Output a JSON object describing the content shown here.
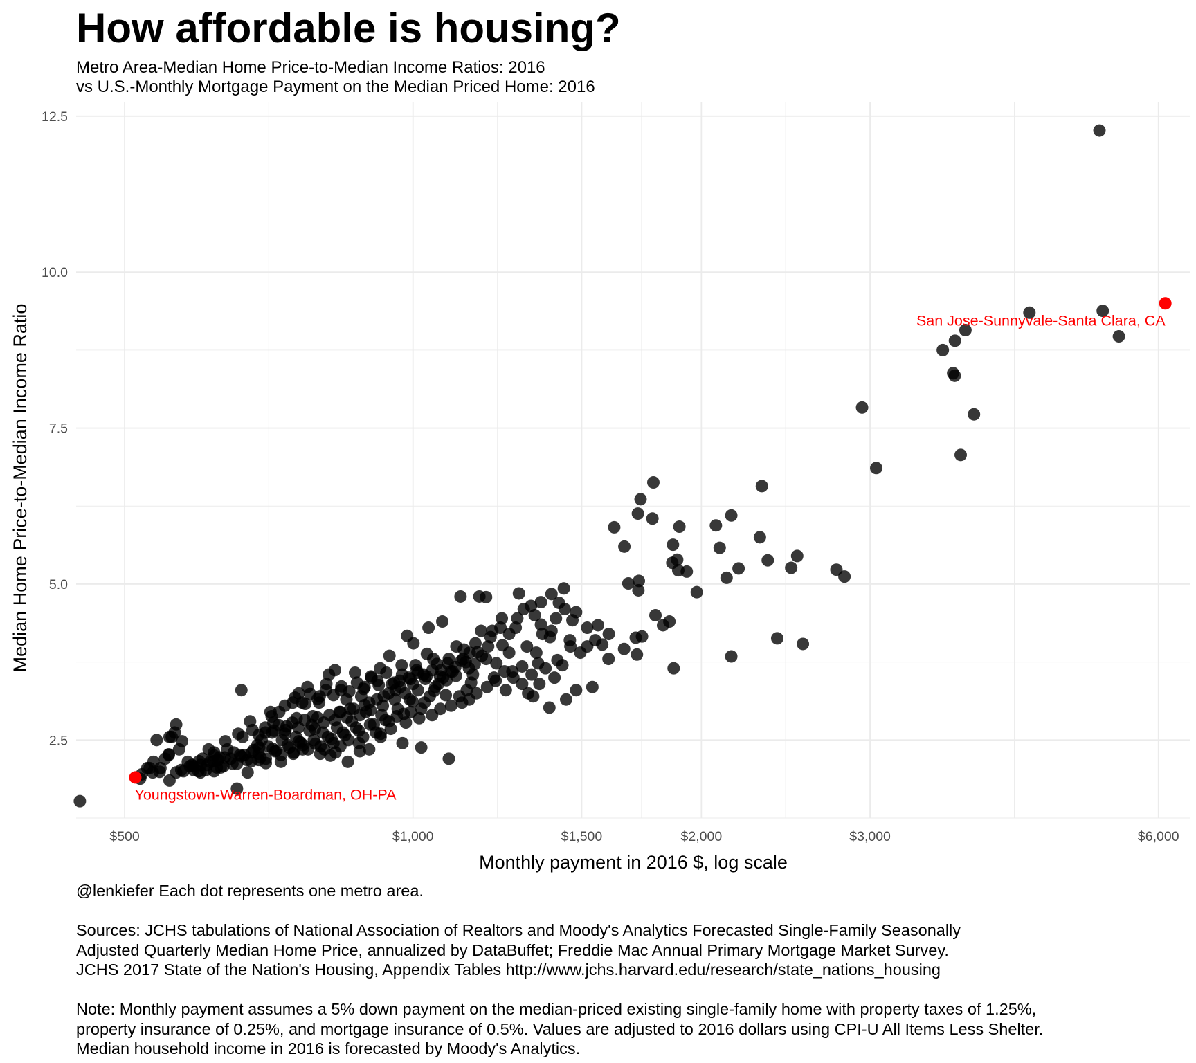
{
  "title": "How affordable is housing?",
  "subtitle_lines": [
    "Metro Area-Median Home Price-to-Median Income Ratios: 2016",
    "vs U.S.-Monthly Mortgage Payment on the Median Priced Home: 2016"
  ],
  "caption": {
    "credit": "@lenkiefer Each dot represents one metro area.",
    "sources": [
      "Sources: JCHS tabulations of National Association of Realtors and Moody's Analytics Forecasted Single-Family Seasonally",
      "Adjusted Quarterly Median Home Price, annualized by DataBuffet; Freddie Mac Annual Primary Mortgage Market Survey.",
      "JCHS 2017 State of the Nation's Housing, Appendix Tables http://www.jchs.harvard.edu/research/state_nations_housing"
    ],
    "note": [
      "Note: Monthly payment assumes a 5% down payment on the median-priced existing single-family home with property taxes of 1.25%,",
      "property insurance of 0.25%, and mortgage insurance of 0.5%. Values are adjusted to 2016 dollars using CPI-U All Items Less Shelter.",
      "Median household income in 2016 is forecasted by Moody's Analytics."
    ]
  },
  "colors": {
    "point": "#000000",
    "highlight": "#ff0000",
    "grid": "#ebebeb",
    "tick_text": "#4d4d4d"
  },
  "chart_data": {
    "type": "scatter",
    "xlabel": "Monthly payment in 2016 $, log scale",
    "ylabel": "Median Home Price-to-Median Income Ratio",
    "x_scale": "log",
    "xlim": [
      445,
      6480
    ],
    "ylim": [
      1.25,
      12.72
    ],
    "x_ticks": [
      {
        "value": 500,
        "label": "$500"
      },
      {
        "value": 1000,
        "label": "$1,000"
      },
      {
        "value": 1500,
        "label": "$1,500"
      },
      {
        "value": 2000,
        "label": "$2,000"
      },
      {
        "value": 3000,
        "label": "$3,000"
      },
      {
        "value": 6000,
        "label": "$6,000"
      }
    ],
    "x_minor_grid": [
      707,
      1225,
      1732,
      2449,
      4243
    ],
    "y_ticks": [
      {
        "value": 2.5,
        "label": "2.5"
      },
      {
        "value": 5.0,
        "label": "5.0"
      },
      {
        "value": 7.5,
        "label": "7.5"
      },
      {
        "value": 10.0,
        "label": "10.0"
      },
      {
        "value": 12.5,
        "label": "12.5"
      }
    ],
    "y_minor_grid": [
      1.25,
      3.75,
      6.25,
      8.75,
      11.25
    ],
    "grid": true,
    "legend": "none",
    "highlighted": [
      {
        "name": "Youngstown-Warren-Boardman, OH-PA",
        "x": 513,
        "y": 1.9
      },
      {
        "name": "San Jose-Sunnyvale-Santa Clara, CA",
        "x": 6100,
        "y": 9.5
      }
    ],
    "points": [
      [
        5207,
        12.27
      ],
      [
        5248,
        9.38
      ],
      [
        4400,
        9.35
      ],
      [
        5456,
        8.97
      ],
      [
        3773,
        9.07
      ],
      [
        3679,
        8.9
      ],
      [
        3573,
        8.75
      ],
      [
        3663,
        8.38
      ],
      [
        3677,
        8.34
      ],
      [
        3851,
        7.72
      ],
      [
        3045,
        6.86
      ],
      [
        3730,
        7.07
      ],
      [
        2943,
        7.83
      ],
      [
        2313,
        6.57
      ],
      [
        1782,
        6.63
      ],
      [
        1728,
        6.36
      ],
      [
        1717,
        6.13
      ],
      [
        1778,
        6.05
      ],
      [
        1622,
        5.91
      ],
      [
        1662,
        5.6
      ],
      [
        2149,
        6.1
      ],
      [
        2071,
        5.94
      ],
      [
        1897,
        5.92
      ],
      [
        2302,
        5.75
      ],
      [
        1868,
        5.63
      ],
      [
        2090,
        5.58
      ],
      [
        1887,
        5.39
      ],
      [
        1865,
        5.34
      ],
      [
        1678,
        5.01
      ],
      [
        1721,
        5.05
      ],
      [
        1719,
        4.9
      ],
      [
        1892,
        5.22
      ],
      [
        1931,
        5.2
      ],
      [
        2187,
        5.25
      ],
      [
        2125,
        5.1
      ],
      [
        2346,
        5.38
      ],
      [
        2518,
        5.45
      ],
      [
        2482,
        5.26
      ],
      [
        2767,
        5.23
      ],
      [
        2821,
        5.12
      ],
      [
        1978,
        4.87
      ],
      [
        1791,
        4.5
      ],
      [
        1852,
        4.4
      ],
      [
        1824,
        4.34
      ],
      [
        1734,
        4.16
      ],
      [
        1708,
        4.14
      ],
      [
        1661,
        3.96
      ],
      [
        1713,
        3.87
      ],
      [
        1601,
        4.2
      ],
      [
        1560,
        4.34
      ],
      [
        1467,
        4.42
      ],
      [
        1437,
        4.93
      ],
      [
        1395,
        4.84
      ],
      [
        1360,
        4.71
      ],
      [
        1328,
        4.65
      ],
      [
        1290,
        4.85
      ],
      [
        1234,
        4.3
      ],
      [
        1192,
        4.79
      ],
      [
        1173,
        4.8
      ],
      [
        1121,
        4.8
      ],
      [
        1073,
        4.4
      ],
      [
        1038,
        4.3
      ],
      [
        1001,
        4.05
      ],
      [
        986,
        4.17
      ],
      [
        2400,
        4.13
      ],
      [
        2553,
        4.04
      ],
      [
        2149,
        3.84
      ],
      [
        1871,
        3.65
      ],
      [
        1458,
        4.1
      ],
      [
        1480,
        3.3
      ],
      [
        1539,
        3.35
      ],
      [
        1445,
        3.15
      ],
      [
        1388,
        3.02
      ],
      [
        1319,
        3.25
      ],
      [
        1415,
        3.78
      ],
      [
        1351,
        3.73
      ],
      [
        1300,
        3.68
      ],
      [
        1273,
        3.5
      ],
      [
        1246,
        3.6
      ],
      [
        1220,
        3.45
      ],
      [
        1192,
        3.8
      ],
      [
        1168,
        3.91
      ],
      [
        1144,
        3.65
      ],
      [
        1123,
        3.77
      ],
      [
        1100,
        3.6
      ],
      [
        1075,
        3.5
      ],
      [
        1055,
        3.35
      ],
      [
        1034,
        3.88
      ],
      [
        1012,
        3.3
      ],
      [
        992,
        3.15
      ],
      [
        968,
        3.45
      ],
      [
        945,
        3.85
      ],
      [
        924,
        3.65
      ],
      [
        905,
        3.5
      ],
      [
        883,
        3.2
      ],
      [
        860,
        3.0
      ],
      [
        838,
        2.95
      ],
      [
        817,
        3.55
      ],
      [
        798,
        3.1
      ],
      [
        776,
        3.35
      ],
      [
        756,
        2.85
      ],
      [
        735,
        3.05
      ],
      [
        716,
        2.65
      ],
      [
        695,
        2.5
      ],
      [
        676,
        2.8
      ],
      [
        657,
        2.6
      ],
      [
        640,
        2.35
      ],
      [
        620,
        2.25
      ],
      [
        603,
        2.2
      ],
      [
        588,
        2.1
      ],
      [
        573,
        2.02
      ],
      [
        1095,
        3.6
      ],
      [
        1059,
        3.72
      ],
      [
        1026,
        3.55
      ],
      [
        1052,
        3.29
      ],
      [
        1006,
        3.7
      ],
      [
        974,
        3.55
      ],
      [
        959,
        3.3
      ],
      [
        951,
        3.4
      ],
      [
        932,
        3.2
      ],
      [
        918,
        3.45
      ],
      [
        900,
        3.1
      ],
      [
        890,
        3.35
      ],
      [
        870,
        3.58
      ],
      [
        852,
        3.15
      ],
      [
        841,
        3.3
      ],
      [
        829,
        3.62
      ],
      [
        812,
        3.4
      ],
      [
        799,
        3.2
      ],
      [
        786,
        2.88
      ],
      [
        772,
        3.08
      ],
      [
        760,
        3.25
      ],
      [
        749,
        3.1
      ],
      [
        738,
        2.72
      ],
      [
        725,
        2.95
      ],
      [
        712,
        2.88
      ],
      [
        701,
        2.62
      ],
      [
        688,
        2.42
      ],
      [
        679,
        2.3
      ],
      [
        664,
        2.55
      ],
      [
        650,
        2.3
      ],
      [
        637,
        2.48
      ],
      [
        626,
        2.18
      ],
      [
        612,
        2.35
      ],
      [
        597,
        2.0
      ],
      [
        582,
        2.15
      ],
      [
        570,
        2.35
      ],
      [
        556,
        2.26
      ],
      [
        545,
        2.05
      ],
      [
        531,
        2.05
      ],
      [
        519,
        1.88
      ],
      [
        1109,
        3.53
      ],
      [
        1084,
        3.46
      ],
      [
        1063,
        3.4
      ],
      [
        1041,
        3.2
      ],
      [
        1020,
        3.0
      ],
      [
        999,
        3.12
      ],
      [
        978,
        2.92
      ],
      [
        964,
        3.0
      ],
      [
        944,
        2.8
      ],
      [
        927,
        2.9
      ],
      [
        910,
        2.75
      ],
      [
        893,
        2.95
      ],
      [
        878,
        2.65
      ],
      [
        863,
        2.8
      ],
      [
        849,
        2.58
      ],
      [
        833,
        2.7
      ],
      [
        822,
        2.52
      ],
      [
        805,
        2.62
      ],
      [
        791,
        2.44
      ],
      [
        780,
        2.65
      ],
      [
        768,
        2.42
      ],
      [
        755,
        2.55
      ],
      [
        743,
        2.38
      ],
      [
        730,
        2.5
      ],
      [
        718,
        2.32
      ],
      [
        706,
        2.4
      ],
      [
        693,
        2.22
      ],
      [
        682,
        2.34
      ],
      [
        671,
        2.18
      ],
      [
        660,
        2.26
      ],
      [
        648,
        2.12
      ],
      [
        636,
        2.22
      ],
      [
        624,
        2.06
      ],
      [
        614,
        2.15
      ],
      [
        600,
        1.98
      ],
      [
        590,
        2.08
      ],
      [
        1150,
        3.42
      ],
      [
        1138,
        3.3
      ],
      [
        1118,
        3.2
      ],
      [
        1096,
        3.05
      ],
      [
        1082,
        3.22
      ],
      [
        1068,
        3.0
      ],
      [
        1047,
        2.9
      ],
      [
        1028,
        3.1
      ],
      [
        1015,
        2.85
      ],
      [
        995,
        2.95
      ],
      [
        983,
        2.78
      ],
      [
        962,
        2.88
      ],
      [
        948,
        2.68
      ],
      [
        936,
        2.82
      ],
      [
        915,
        2.62
      ],
      [
        902,
        2.75
      ],
      [
        887,
        2.55
      ],
      [
        872,
        2.7
      ],
      [
        856,
        2.5
      ],
      [
        845,
        2.62
      ],
      [
        826,
        2.45
      ],
      [
        815,
        2.55
      ],
      [
        801,
        2.4
      ],
      [
        788,
        2.5
      ],
      [
        777,
        2.35
      ],
      [
        763,
        2.46
      ],
      [
        751,
        2.3
      ],
      [
        740,
        2.42
      ],
      [
        728,
        2.26
      ],
      [
        714,
        2.36
      ],
      [
        702,
        2.2
      ],
      [
        690,
        2.28
      ],
      [
        678,
        2.16
      ],
      [
        667,
        2.26
      ],
      [
        655,
        2.12
      ],
      [
        645,
        2.2
      ],
      [
        630,
        2.06
      ],
      [
        619,
        2.16
      ],
      [
        608,
        2.02
      ],
      [
        1180,
        3.85
      ],
      [
        1160,
        3.72
      ],
      [
        1130,
        3.95
      ],
      [
        1110,
        4.0
      ],
      [
        1090,
        3.8
      ],
      [
        1070,
        3.62
      ],
      [
        1050,
        3.8
      ],
      [
        1033,
        3.52
      ],
      [
        1009,
        3.62
      ],
      [
        990,
        3.5
      ],
      [
        973,
        3.7
      ],
      [
        956,
        3.42
      ],
      [
        938,
        3.58
      ],
      [
        921,
        3.38
      ],
      [
        904,
        3.52
      ],
      [
        888,
        3.32
      ],
      [
        874,
        3.42
      ],
      [
        858,
        3.28
      ],
      [
        842,
        3.36
      ],
      [
        826,
        3.22
      ],
      [
        811,
        3.3
      ],
      [
        795,
        3.16
      ],
      [
        781,
        3.24
      ],
      [
        766,
        3.1
      ],
      [
        753,
        3.18
      ],
      [
        1240,
        4.02
      ],
      [
        1260,
        3.9
      ],
      [
        1205,
        4.15
      ],
      [
        1222,
        3.73
      ],
      [
        1270,
        3.6
      ],
      [
        1215,
        3.5
      ],
      [
        1195,
        3.35
      ],
      [
        1165,
        3.25
      ],
      [
        1145,
        3.15
      ],
      [
        1125,
        3.1
      ],
      [
        1155,
        3.55
      ],
      [
        1135,
        3.75
      ],
      [
        1300,
        3.4
      ],
      [
        1330,
        3.55
      ],
      [
        1345,
        3.9
      ],
      [
        1280,
        4.3
      ],
      [
        1315,
        4.0
      ],
      [
        1365,
        4.2
      ],
      [
        1390,
        4.15
      ],
      [
        1410,
        4.45
      ],
      [
        1440,
        4.6
      ],
      [
        1460,
        4.0
      ],
      [
        1495,
        3.9
      ],
      [
        1520,
        4.3
      ],
      [
        1550,
        4.1
      ],
      [
        1576,
        4.03
      ],
      [
        1432,
        3.7
      ],
      [
        1405,
        3.5
      ],
      [
        1375,
        3.65
      ],
      [
        1355,
        3.4
      ],
      [
        1335,
        3.2
      ],
      [
        1250,
        3.3
      ],
      [
        1520,
        4.0
      ],
      [
        1600,
        3.8
      ],
      [
        1480,
        4.55
      ],
      [
        1420,
        4.7
      ],
      [
        1395,
        4.25
      ],
      [
        1360,
        4.35
      ],
      [
        1340,
        4.5
      ],
      [
        1305,
        4.6
      ],
      [
        1285,
        4.45
      ],
      [
        1260,
        4.2
      ],
      [
        1238,
        4.45
      ],
      [
        1210,
        4.25
      ],
      [
        1198,
        4.0
      ],
      [
        1178,
        4.25
      ],
      [
        1162,
        4.05
      ],
      [
        1146,
        3.9
      ],
      [
        1128,
        3.8
      ],
      [
        1107,
        3.67
      ],
      [
        1087,
        3.73
      ],
      [
        1067,
        3.52
      ],
      [
        1048,
        3.62
      ],
      [
        1030,
        3.48
      ],
      [
        1012,
        3.58
      ],
      [
        1000,
        3.4
      ],
      [
        994,
        3.48
      ],
      [
        981,
        3.25
      ],
      [
        970,
        3.35
      ],
      [
        957,
        3.15
      ],
      [
        943,
        3.25
      ],
      [
        930,
        3.05
      ],
      [
        917,
        3.15
      ],
      [
        903,
        2.98
      ],
      [
        890,
        3.06
      ],
      [
        880,
        2.9
      ],
      [
        867,
        3.0
      ],
      [
        853,
        2.86
      ],
      [
        840,
        2.95
      ],
      [
        829,
        2.82
      ],
      [
        818,
        2.9
      ],
      [
        807,
        2.78
      ],
      [
        795,
        2.86
      ],
      [
        784,
        2.74
      ],
      [
        771,
        2.82
      ],
      [
        759,
        2.7
      ],
      [
        748,
        2.78
      ],
      [
        736,
        2.66
      ],
      [
        724,
        2.74
      ],
      [
        713,
        2.62
      ],
      [
        701,
        2.7
      ],
      [
        690,
        2.58
      ],
      [
        680,
        2.66
      ],
      [
        1090,
        2.2
      ],
      [
        1020,
        2.38
      ],
      [
        975,
        2.45
      ],
      [
        925,
        2.55
      ],
      [
        880,
        2.32
      ],
      [
        840,
        2.4
      ],
      [
        800,
        2.28
      ],
      [
        760,
        2.48
      ],
      [
        720,
        2.33
      ],
      [
        690,
        2.18
      ],
      [
        662,
        2.24
      ],
      [
        634,
        2.08
      ],
      [
        620,
        2.0
      ],
      [
        610,
        2.1
      ],
      [
        598,
        2.16
      ],
      [
        566,
        1.98
      ],
      [
        556,
        2.27
      ],
      [
        544,
        1.99
      ],
      [
        536,
        2.15
      ],
      [
        528,
        2.05
      ],
      [
        521,
        1.95
      ],
      [
        557,
        2.55
      ],
      [
        564,
        2.62
      ],
      [
        574,
        2.48
      ],
      [
        662,
        3.3
      ],
      [
        691,
        2.38
      ],
      [
        672,
        1.98
      ],
      [
        655,
        1.72
      ],
      [
        535,
        1.98
      ],
      [
        551,
        2.2
      ],
      [
        585,
        2.08
      ],
      [
        620,
        2.3
      ],
      [
        628,
        2.22
      ],
      [
        702,
        2.13
      ],
      [
        728,
        2.15
      ],
      [
        750,
        2.28
      ],
      [
        710,
        2.95
      ],
      [
        715,
        2.78
      ],
      [
        735,
        2.6
      ],
      [
        767,
        2.35
      ],
      [
        790,
        2.68
      ],
      [
        808,
        2.35
      ],
      [
        925,
        2.6
      ],
      [
        900,
        2.35
      ],
      [
        878,
        2.45
      ],
      [
        855,
        2.15
      ],
      [
        830,
        2.3
      ],
      [
        820,
        2.25
      ],
      [
        557,
        1.85
      ],
      [
        566,
        2.75
      ],
      [
        560,
        2.55
      ],
      [
        449,
        1.52
      ],
      [
        540,
        2.5
      ],
      [
        576,
        2.0
      ],
      [
        590,
        2.02
      ],
      [
        600,
        2.1
      ]
    ]
  }
}
